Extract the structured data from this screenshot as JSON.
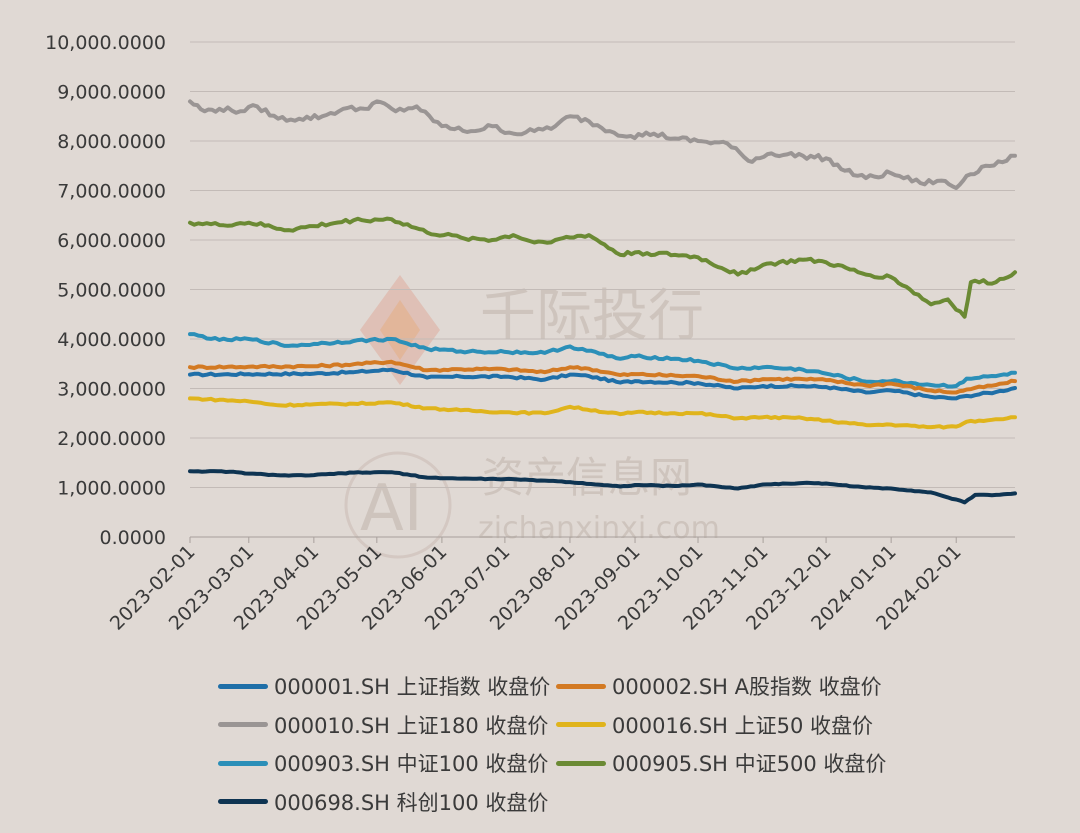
{
  "chart_data": {
    "type": "line",
    "title": "",
    "xlabel": "",
    "ylabel": "",
    "ylim": [
      0,
      10000
    ],
    "yticks": [
      "0.0000",
      "1,000.0000",
      "2,000.0000",
      "3,000.0000",
      "4,000.0000",
      "5,000.0000",
      "6,000.0000",
      "7,000.0000",
      "8,000.0000",
      "9,000.0000",
      "10,000.0000"
    ],
    "xlim": [
      "2023-02-01",
      "2024-02-29"
    ],
    "xticks": [
      "2023-02-01",
      "2023-03-01",
      "2023-04-01",
      "2023-05-01",
      "2023-06-01",
      "2023-07-01",
      "2023-08-01",
      "2023-09-01",
      "2023-10-01",
      "2023-11-01",
      "2023-12-01",
      "2024-01-01",
      "2024-02-01"
    ],
    "grid": "horizontal",
    "legend_position": "bottom",
    "series": [
      {
        "name": "000001.SH 上证指数 收盘价",
        "color": "#1f6fa8",
        "points": [
          [
            "2023-02-01",
            3280
          ],
          [
            "2023-03-01",
            3290
          ],
          [
            "2023-04-01",
            3300
          ],
          [
            "2023-04-20",
            3330
          ],
          [
            "2023-05-08",
            3380
          ],
          [
            "2023-05-25",
            3220
          ],
          [
            "2023-06-10",
            3240
          ],
          [
            "2023-07-01",
            3240
          ],
          [
            "2023-07-20",
            3180
          ],
          [
            "2023-08-01",
            3280
          ],
          [
            "2023-08-10",
            3250
          ],
          [
            "2023-08-25",
            3120
          ],
          [
            "2023-09-01",
            3150
          ],
          [
            "2023-09-20",
            3120
          ],
          [
            "2023-10-01",
            3110
          ],
          [
            "2023-10-20",
            3000
          ],
          [
            "2023-11-01",
            3050
          ],
          [
            "2023-11-20",
            3050
          ],
          [
            "2023-12-01",
            3030
          ],
          [
            "2023-12-20",
            2920
          ],
          [
            "2024-01-01",
            2960
          ],
          [
            "2024-01-20",
            2830
          ],
          [
            "2024-02-01",
            2800
          ],
          [
            "2024-02-06",
            2850
          ],
          [
            "2024-02-20",
            2930
          ],
          [
            "2024-02-29",
            3010
          ]
        ]
      },
      {
        "name": "000002.SH A股指数 收盘价",
        "color": "#d37a23",
        "points": [
          [
            "2023-02-01",
            3430
          ],
          [
            "2023-03-01",
            3440
          ],
          [
            "2023-04-01",
            3450
          ],
          [
            "2023-04-20",
            3490
          ],
          [
            "2023-05-08",
            3540
          ],
          [
            "2023-05-25",
            3370
          ],
          [
            "2023-06-10",
            3390
          ],
          [
            "2023-07-01",
            3390
          ],
          [
            "2023-07-20",
            3330
          ],
          [
            "2023-08-01",
            3430
          ],
          [
            "2023-08-10",
            3400
          ],
          [
            "2023-08-25",
            3270
          ],
          [
            "2023-09-01",
            3290
          ],
          [
            "2023-09-20",
            3260
          ],
          [
            "2023-10-01",
            3250
          ],
          [
            "2023-10-20",
            3140
          ],
          [
            "2023-11-01",
            3190
          ],
          [
            "2023-11-20",
            3190
          ],
          [
            "2023-12-01",
            3170
          ],
          [
            "2023-12-20",
            3060
          ],
          [
            "2024-01-01",
            3100
          ],
          [
            "2024-01-20",
            2960
          ],
          [
            "2024-02-01",
            2920
          ],
          [
            "2024-02-06",
            2980
          ],
          [
            "2024-02-20",
            3070
          ],
          [
            "2024-02-29",
            3150
          ]
        ]
      },
      {
        "name": "000010.SH 上证180 收盘价",
        "color": "#9a9594",
        "points": [
          [
            "2023-02-01",
            8800
          ],
          [
            "2023-02-08",
            8600
          ],
          [
            "2023-02-15",
            8650
          ],
          [
            "2023-02-25",
            8600
          ],
          [
            "2023-03-05",
            8700
          ],
          [
            "2023-03-15",
            8450
          ],
          [
            "2023-03-25",
            8450
          ],
          [
            "2023-04-05",
            8500
          ],
          [
            "2023-04-15",
            8650
          ],
          [
            "2023-04-25",
            8650
          ],
          [
            "2023-05-01",
            8800
          ],
          [
            "2023-05-10",
            8600
          ],
          [
            "2023-05-20",
            8700
          ],
          [
            "2023-05-28",
            8400
          ],
          [
            "2023-06-05",
            8250
          ],
          [
            "2023-06-15",
            8200
          ],
          [
            "2023-06-25",
            8300
          ],
          [
            "2023-07-05",
            8150
          ],
          [
            "2023-07-15",
            8200
          ],
          [
            "2023-07-25",
            8300
          ],
          [
            "2023-08-01",
            8500
          ],
          [
            "2023-08-10",
            8400
          ],
          [
            "2023-08-20",
            8200
          ],
          [
            "2023-08-30",
            8100
          ],
          [
            "2023-09-10",
            8150
          ],
          [
            "2023-09-20",
            8050
          ],
          [
            "2023-10-01",
            8000
          ],
          [
            "2023-10-15",
            7950
          ],
          [
            "2023-10-25",
            7600
          ],
          [
            "2023-11-05",
            7750
          ],
          [
            "2023-11-20",
            7700
          ],
          [
            "2023-12-01",
            7650
          ],
          [
            "2023-12-10",
            7400
          ],
          [
            "2023-12-20",
            7250
          ],
          [
            "2024-01-01",
            7350
          ],
          [
            "2024-01-15",
            7150
          ],
          [
            "2024-01-25",
            7200
          ],
          [
            "2024-02-01",
            7050
          ],
          [
            "2024-02-06",
            7300
          ],
          [
            "2024-02-15",
            7500
          ],
          [
            "2024-02-25",
            7600
          ],
          [
            "2024-02-29",
            7700
          ]
        ]
      },
      {
        "name": "000016.SH 上证50 收盘价",
        "color": "#e0b41c",
        "points": [
          [
            "2023-02-01",
            2800
          ],
          [
            "2023-03-01",
            2740
          ],
          [
            "2023-03-15",
            2660
          ],
          [
            "2023-04-01",
            2680
          ],
          [
            "2023-04-20",
            2690
          ],
          [
            "2023-05-08",
            2720
          ],
          [
            "2023-05-25",
            2600
          ],
          [
            "2023-06-10",
            2560
          ],
          [
            "2023-07-01",
            2520
          ],
          [
            "2023-07-20",
            2500
          ],
          [
            "2023-08-01",
            2630
          ],
          [
            "2023-08-25",
            2480
          ],
          [
            "2023-09-01",
            2520
          ],
          [
            "2023-09-20",
            2500
          ],
          [
            "2023-10-01",
            2500
          ],
          [
            "2023-10-20",
            2400
          ],
          [
            "2023-11-01",
            2420
          ],
          [
            "2023-11-20",
            2400
          ],
          [
            "2023-12-01",
            2350
          ],
          [
            "2023-12-20",
            2260
          ],
          [
            "2024-01-01",
            2270
          ],
          [
            "2024-01-20",
            2220
          ],
          [
            "2024-02-01",
            2230
          ],
          [
            "2024-02-06",
            2330
          ],
          [
            "2024-02-20",
            2380
          ],
          [
            "2024-02-29",
            2420
          ]
        ]
      },
      {
        "name": "000903.SH 中证100 收盘价",
        "color": "#2b8fb8",
        "points": [
          [
            "2023-02-01",
            4100
          ],
          [
            "2023-02-15",
            3980
          ],
          [
            "2023-03-01",
            4000
          ],
          [
            "2023-03-20",
            3860
          ],
          [
            "2023-04-01",
            3900
          ],
          [
            "2023-04-20",
            3960
          ],
          [
            "2023-05-08",
            4000
          ],
          [
            "2023-05-25",
            3800
          ],
          [
            "2023-06-10",
            3750
          ],
          [
            "2023-07-01",
            3740
          ],
          [
            "2023-07-20",
            3720
          ],
          [
            "2023-08-01",
            3850
          ],
          [
            "2023-08-25",
            3600
          ],
          [
            "2023-09-01",
            3650
          ],
          [
            "2023-09-20",
            3600
          ],
          [
            "2023-10-01",
            3560
          ],
          [
            "2023-10-20",
            3400
          ],
          [
            "2023-11-01",
            3430
          ],
          [
            "2023-11-20",
            3380
          ],
          [
            "2023-12-01",
            3300
          ],
          [
            "2023-12-20",
            3140
          ],
          [
            "2024-01-01",
            3150
          ],
          [
            "2024-01-20",
            3070
          ],
          [
            "2024-02-01",
            3050
          ],
          [
            "2024-02-06",
            3200
          ],
          [
            "2024-02-20",
            3250
          ],
          [
            "2024-02-29",
            3320
          ]
        ]
      },
      {
        "name": "000905.SH 中证500 收盘价",
        "color": "#6b8a34",
        "points": [
          [
            "2023-02-01",
            6350
          ],
          [
            "2023-02-15",
            6300
          ],
          [
            "2023-03-01",
            6350
          ],
          [
            "2023-03-20",
            6200
          ],
          [
            "2023-04-01",
            6280
          ],
          [
            "2023-04-20",
            6400
          ],
          [
            "2023-05-08",
            6420
          ],
          [
            "2023-05-25",
            6150
          ],
          [
            "2023-06-10",
            6050
          ],
          [
            "2023-06-25",
            6000
          ],
          [
            "2023-07-05",
            6100
          ],
          [
            "2023-07-15",
            5950
          ],
          [
            "2023-07-25",
            6000
          ],
          [
            "2023-08-01",
            6050
          ],
          [
            "2023-08-10",
            6100
          ],
          [
            "2023-08-25",
            5700
          ],
          [
            "2023-09-01",
            5750
          ],
          [
            "2023-09-20",
            5700
          ],
          [
            "2023-10-01",
            5650
          ],
          [
            "2023-10-20",
            5300
          ],
          [
            "2023-11-01",
            5500
          ],
          [
            "2023-11-20",
            5600
          ],
          [
            "2023-12-01",
            5550
          ],
          [
            "2023-12-20",
            5300
          ],
          [
            "2024-01-01",
            5250
          ],
          [
            "2024-01-10",
            5000
          ],
          [
            "2024-01-20",
            4700
          ],
          [
            "2024-01-28",
            4800
          ],
          [
            "2024-02-05",
            4450
          ],
          [
            "2024-02-08",
            5150
          ],
          [
            "2024-02-20",
            5150
          ],
          [
            "2024-02-29",
            5350
          ]
        ]
      },
      {
        "name": "000698.SH 科创100 收盘价",
        "color": "#0e3452",
        "points": [
          [
            "2023-02-01",
            1330
          ],
          [
            "2023-02-20",
            1320
          ],
          [
            "2023-03-01",
            1280
          ],
          [
            "2023-03-20",
            1240
          ],
          [
            "2023-04-01",
            1250
          ],
          [
            "2023-04-20",
            1300
          ],
          [
            "2023-05-08",
            1310
          ],
          [
            "2023-05-25",
            1200
          ],
          [
            "2023-06-10",
            1180
          ],
          [
            "2023-07-01",
            1170
          ],
          [
            "2023-07-20",
            1140
          ],
          [
            "2023-08-01",
            1110
          ],
          [
            "2023-08-25",
            1020
          ],
          [
            "2023-09-01",
            1050
          ],
          [
            "2023-09-20",
            1030
          ],
          [
            "2023-10-01",
            1060
          ],
          [
            "2023-10-20",
            980
          ],
          [
            "2023-11-01",
            1060
          ],
          [
            "2023-11-20",
            1090
          ],
          [
            "2023-12-01",
            1080
          ],
          [
            "2023-12-20",
            1000
          ],
          [
            "2024-01-01",
            980
          ],
          [
            "2024-01-20",
            900
          ],
          [
            "2024-02-05",
            700
          ],
          [
            "2024-02-10",
            850
          ],
          [
            "2024-02-20",
            850
          ],
          [
            "2024-02-29",
            880
          ]
        ]
      }
    ]
  },
  "watermark": {
    "brand_text": "千际投行",
    "site_name": "资产信息网",
    "site_url": "zichanxinxi.com",
    "logo_text": "AI"
  }
}
